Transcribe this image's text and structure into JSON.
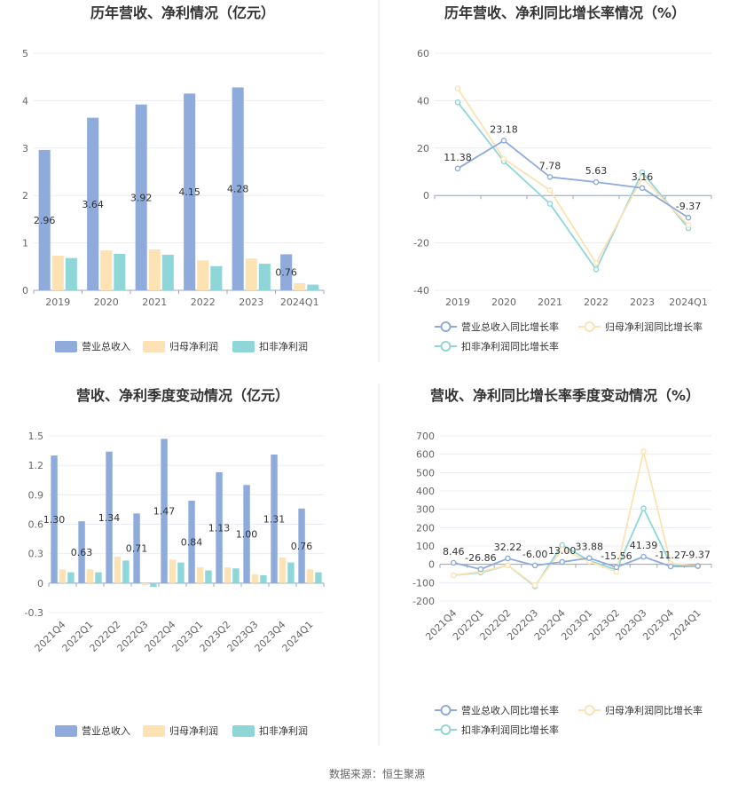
{
  "colors": {
    "revenue": "#8eabdb",
    "parent_net_profit": "#fde2b3",
    "deducted_net_profit": "#8fd6d8",
    "grid": "#e8ecf2",
    "axis": "#9aa7b9",
    "divider": "#e6e6e6"
  },
  "source_text": "数据来源：恒生聚源",
  "chart_data": [
    {
      "id": "annual_amount",
      "type": "bar",
      "title": "历年营收、净利情况（亿元）",
      "categories": [
        "2019",
        "2020",
        "2021",
        "2022",
        "2023",
        "2024Q1"
      ],
      "ylim": [
        0,
        5
      ],
      "yticks": [
        0,
        1,
        2,
        3,
        4,
        5
      ],
      "legend_position": "bottom",
      "label_series": 0,
      "series": [
        {
          "name": "营业总收入",
          "color_key": "revenue",
          "values": [
            2.96,
            3.64,
            3.92,
            4.15,
            4.28,
            0.76
          ],
          "labels": [
            "2.96",
            "3.64",
            "3.92",
            "4.15",
            "4.28",
            "0.76"
          ]
        },
        {
          "name": "归母净利润",
          "color_key": "parent_net_profit",
          "values": [
            0.73,
            0.84,
            0.86,
            0.63,
            0.67,
            0.15
          ]
        },
        {
          "name": "扣非净利润",
          "color_key": "deducted_net_profit",
          "values": [
            0.68,
            0.77,
            0.75,
            0.51,
            0.56,
            0.12
          ]
        }
      ]
    },
    {
      "id": "annual_growth",
      "type": "line",
      "title": "历年营收、净利同比增长率情况（%）",
      "categories": [
        "2019",
        "2020",
        "2021",
        "2022",
        "2023",
        "2024Q1"
      ],
      "ylim": [
        -40,
        60
      ],
      "yticks": [
        -40,
        -20,
        0,
        20,
        40,
        60
      ],
      "legend_position": "bottom",
      "label_series": 0,
      "series": [
        {
          "name": "营业总收入同比增长率",
          "color_key": "revenue",
          "values": [
            11.38,
            23.18,
            7.78,
            5.63,
            3.16,
            -9.37
          ],
          "labels": [
            "11.38",
            "23.18",
            "7.78",
            "5.63",
            "3.16",
            "-9.37"
          ]
        },
        {
          "name": "归母净利润同比增长率",
          "color_key": "parent_net_profit",
          "values": [
            45.2,
            15.5,
            2.2,
            -28.5,
            7.5,
            -12.5
          ]
        },
        {
          "name": "扣非净利润同比增长率",
          "color_key": "deducted_net_profit",
          "values": [
            39.3,
            14.4,
            -3.5,
            -31.2,
            9.8,
            -13.8
          ]
        }
      ]
    },
    {
      "id": "quarterly_amount",
      "type": "bar",
      "title": "营收、净利季度变动情况（亿元）",
      "categories": [
        "2021Q4",
        "2022Q1",
        "2022Q2",
        "2022Q3",
        "2022Q4",
        "2023Q1",
        "2023Q2",
        "2023Q3",
        "2023Q4",
        "2024Q1"
      ],
      "ylim": [
        -0.3,
        1.5
      ],
      "yticks": [
        -0.3,
        0,
        0.3,
        0.6,
        0.9,
        1.2,
        1.5
      ],
      "ytick_labels": [
        "-0.3",
        "0",
        "0.3",
        "0.6",
        "0.9",
        "1.2",
        "1.5"
      ],
      "legend_position": "bottom",
      "label_series": 0,
      "series": [
        {
          "name": "营业总收入",
          "color_key": "revenue",
          "values": [
            1.3,
            0.63,
            1.34,
            0.71,
            1.47,
            0.84,
            1.13,
            1.0,
            1.31,
            0.76
          ],
          "labels": [
            "1.30",
            "0.63",
            "1.34",
            "0.71",
            "1.47",
            "0.84",
            "1.13",
            "1.00",
            "1.31",
            "0.76"
          ]
        },
        {
          "name": "归母净利润",
          "color_key": "parent_net_profit",
          "values": [
            0.14,
            0.14,
            0.27,
            -0.02,
            0.24,
            0.16,
            0.16,
            0.09,
            0.26,
            0.14
          ]
        },
        {
          "name": "扣非净利润",
          "color_key": "deducted_net_profit",
          "values": [
            0.11,
            0.11,
            0.23,
            -0.04,
            0.21,
            0.13,
            0.15,
            0.08,
            0.21,
            0.11
          ]
        }
      ]
    },
    {
      "id": "quarterly_growth",
      "type": "line",
      "title": "营收、净利同比增长率季度变动情况（%）",
      "categories": [
        "2021Q4",
        "2022Q1",
        "2022Q2",
        "2022Q3",
        "2022Q4",
        "2023Q1",
        "2023Q2",
        "2023Q3",
        "2023Q4",
        "2024Q1"
      ],
      "ylim": [
        -200,
        700
      ],
      "yticks": [
        -200,
        -100,
        0,
        100,
        200,
        300,
        400,
        500,
        600,
        700
      ],
      "legend_position": "bottom",
      "label_series": 0,
      "series": [
        {
          "name": "营业总收入同比增长率",
          "color_key": "revenue",
          "values": [
            8.46,
            -26.86,
            32.22,
            -6.0,
            13.0,
            33.88,
            -15.56,
            41.39,
            -11.27,
            -9.37
          ],
          "labels": [
            "8.46",
            "-26.86",
            "32.22",
            "-6.00",
            "13.00",
            "33.88",
            "-15.56",
            "41.39",
            "-11.27",
            "-9.37"
          ]
        },
        {
          "name": "归母净利润同比增长率",
          "color_key": "parent_net_profit",
          "values": [
            -60,
            -40,
            -5,
            -115,
            80,
            15,
            -40,
            615,
            5,
            -10
          ]
        },
        {
          "name": "扣非净利润同比增长率",
          "color_key": "deducted_net_profit",
          "values": [
            -60,
            -45,
            -5,
            -120,
            105,
            20,
            -30,
            305,
            0,
            -10
          ]
        }
      ]
    }
  ]
}
